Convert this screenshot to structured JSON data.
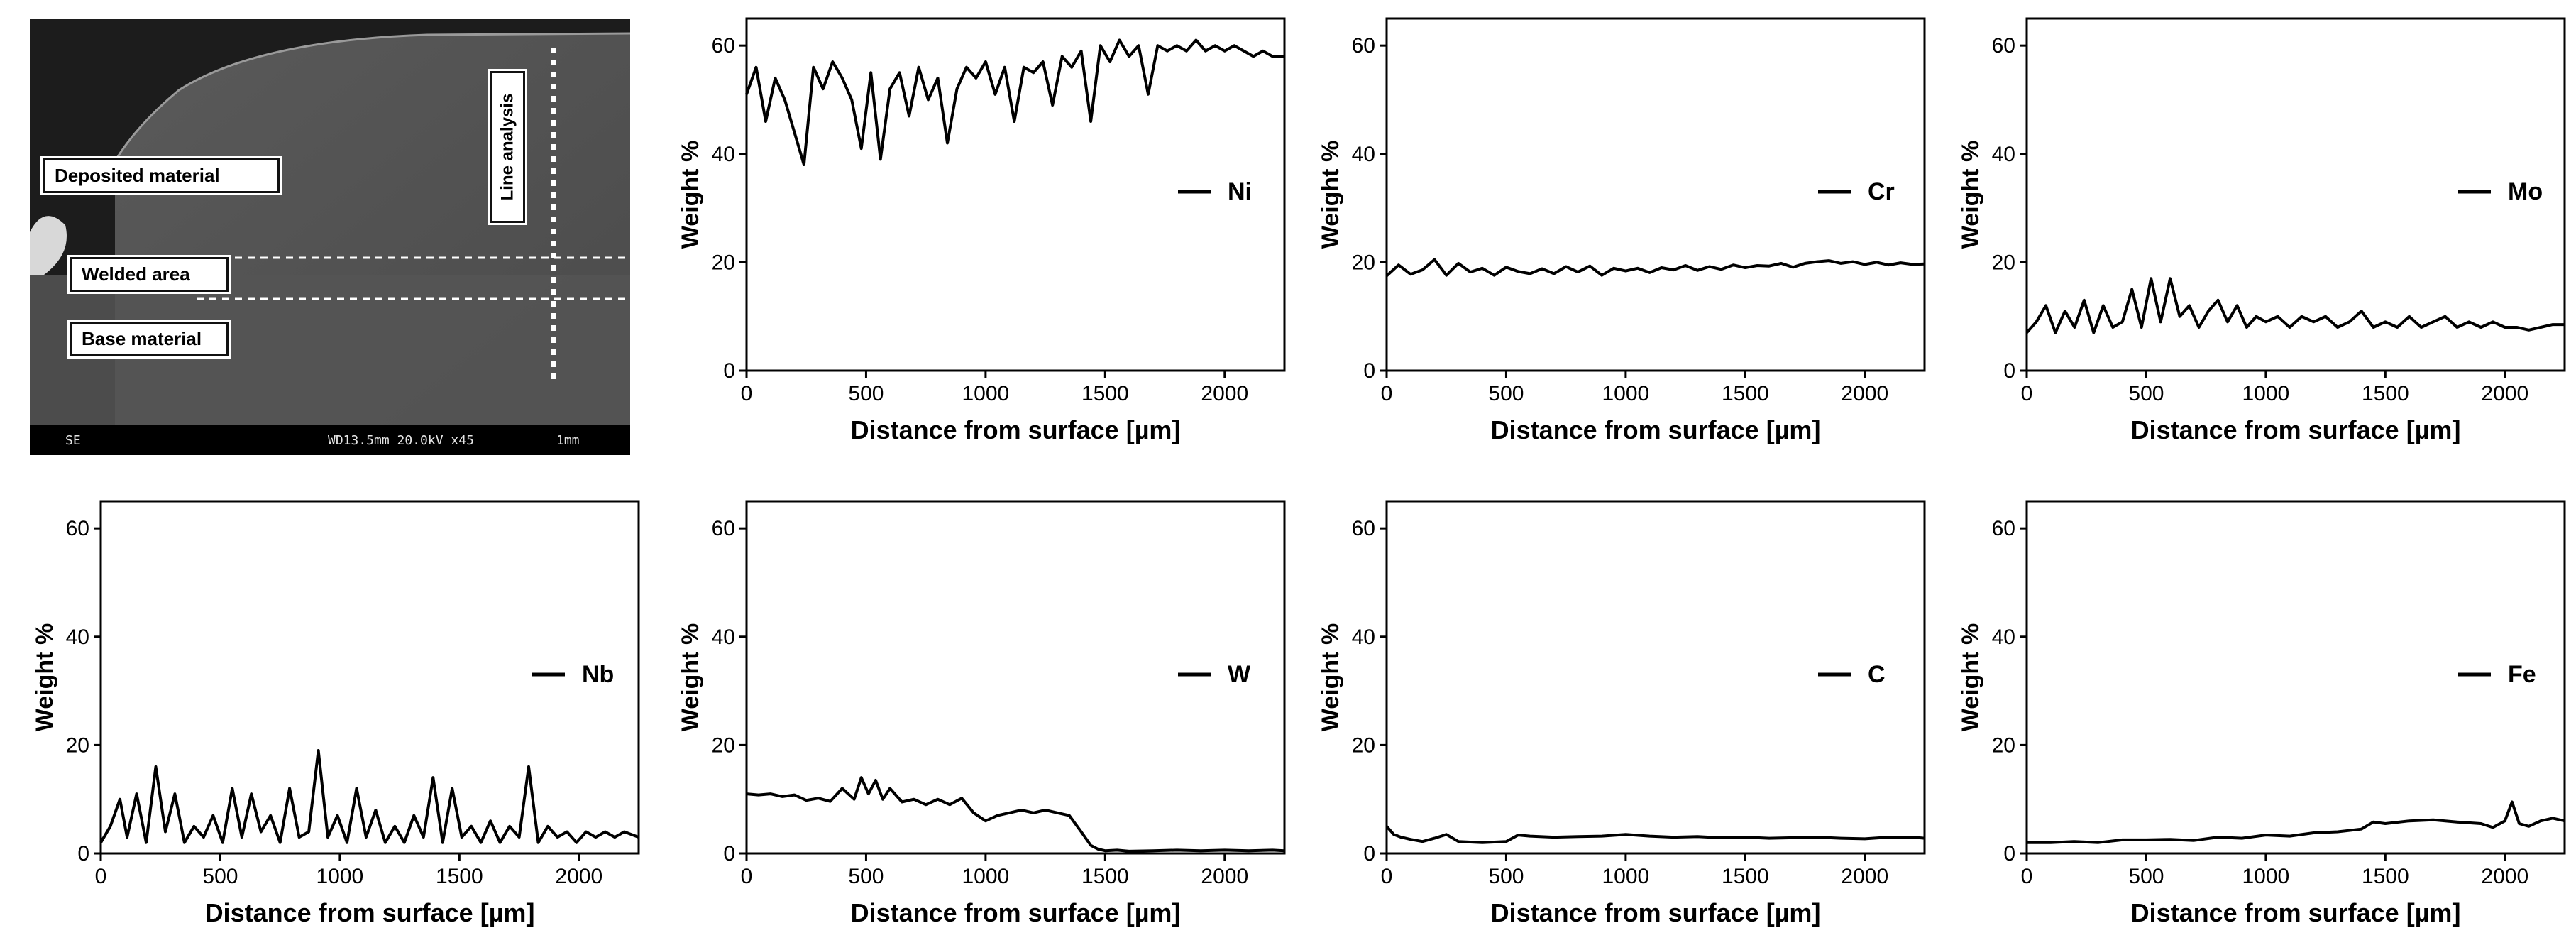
{
  "sem_image": {
    "labels": {
      "deposited": "Deposited material",
      "welded": "Welded area",
      "base": "Base material",
      "line": "Line analysis"
    },
    "footer": {
      "mode": "SE",
      "params": "WD13.5mm 20.0kV x45",
      "scale": "1mm"
    }
  },
  "chart_data": [
    {
      "type": "line",
      "xlabel": "Distance from surface [µm]",
      "ylabel": "Weight %",
      "xlim": [
        0,
        2250
      ],
      "ylim": [
        0,
        65
      ],
      "xticks": [
        0,
        500,
        1000,
        1500,
        2000
      ],
      "yticks": [
        0,
        20,
        40,
        60
      ],
      "series": [
        {
          "name": "Ni",
          "x": [
            0,
            40,
            80,
            120,
            160,
            200,
            240,
            280,
            320,
            360,
            400,
            440,
            480,
            520,
            560,
            600,
            640,
            680,
            720,
            760,
            800,
            840,
            880,
            920,
            960,
            1000,
            1040,
            1080,
            1120,
            1160,
            1200,
            1240,
            1280,
            1320,
            1360,
            1400,
            1440,
            1480,
            1520,
            1560,
            1600,
            1640,
            1680,
            1720,
            1760,
            1800,
            1840,
            1880,
            1920,
            1960,
            2000,
            2040,
            2080,
            2120,
            2160,
            2200,
            2250
          ],
          "y": [
            51,
            56,
            46,
            54,
            50,
            44,
            38,
            56,
            52,
            57,
            54,
            50,
            41,
            55,
            39,
            52,
            55,
            47,
            56,
            50,
            54,
            42,
            52,
            56,
            54,
            57,
            51,
            56,
            46,
            56,
            55,
            57,
            49,
            58,
            56,
            59,
            46,
            60,
            57,
            61,
            58,
            60,
            51,
            60,
            59,
            60,
            59,
            61,
            59,
            60,
            59,
            60,
            59,
            58,
            59,
            58,
            58
          ]
        }
      ]
    },
    {
      "type": "line",
      "xlabel": "Distance from surface [µm]",
      "ylabel": "Weight %",
      "xlim": [
        0,
        2250
      ],
      "ylim": [
        0,
        65
      ],
      "xticks": [
        0,
        500,
        1000,
        1500,
        2000
      ],
      "yticks": [
        0,
        20,
        40,
        60
      ],
      "series": [
        {
          "name": "Cr",
          "x": [
            0,
            50,
            100,
            150,
            200,
            250,
            300,
            350,
            400,
            450,
            500,
            550,
            600,
            650,
            700,
            750,
            800,
            850,
            900,
            950,
            1000,
            1050,
            1100,
            1150,
            1200,
            1250,
            1300,
            1350,
            1400,
            1450,
            1500,
            1550,
            1600,
            1650,
            1700,
            1750,
            1800,
            1850,
            1900,
            1950,
            2000,
            2050,
            2100,
            2150,
            2200,
            2250
          ],
          "y": [
            17.5,
            19.5,
            17.8,
            18.6,
            20.5,
            17.6,
            19.8,
            18.2,
            18.9,
            17.6,
            19.1,
            18.3,
            17.9,
            18.8,
            17.9,
            19.2,
            18.2,
            19.3,
            17.6,
            18.9,
            18.4,
            18.9,
            18.1,
            19.0,
            18.6,
            19.4,
            18.5,
            19.2,
            18.7,
            19.5,
            19.0,
            19.4,
            19.3,
            19.8,
            19.1,
            19.8,
            20.1,
            20.3,
            19.8,
            20.1,
            19.6,
            20.0,
            19.5,
            19.9,
            19.6,
            19.7
          ]
        }
      ]
    },
    {
      "type": "line",
      "xlabel": "Distance from surface [µm]",
      "ylabel": "Weight %",
      "xlim": [
        0,
        2250
      ],
      "ylim": [
        0,
        65
      ],
      "xticks": [
        0,
        500,
        1000,
        1500,
        2000
      ],
      "yticks": [
        0,
        20,
        40,
        60
      ],
      "series": [
        {
          "name": "Mo",
          "x": [
            0,
            40,
            80,
            120,
            160,
            200,
            240,
            280,
            320,
            360,
            400,
            440,
            480,
            520,
            560,
            600,
            640,
            680,
            720,
            760,
            800,
            840,
            880,
            920,
            960,
            1000,
            1050,
            1100,
            1150,
            1200,
            1250,
            1300,
            1350,
            1400,
            1450,
            1500,
            1550,
            1600,
            1650,
            1700,
            1750,
            1800,
            1850,
            1900,
            1950,
            2000,
            2050,
            2100,
            2150,
            2200,
            2250
          ],
          "y": [
            7,
            9,
            12,
            7,
            11,
            8,
            13,
            7,
            12,
            8,
            9,
            15,
            8,
            17,
            9,
            17,
            10,
            12,
            8,
            11,
            13,
            9,
            12,
            8,
            10,
            9,
            10,
            8,
            10,
            9,
            10,
            8,
            9,
            11,
            8,
            9,
            8,
            10,
            8,
            9,
            10,
            8,
            9,
            8,
            9,
            8,
            8,
            7.5,
            8,
            8.5,
            8.5
          ]
        }
      ]
    },
    {
      "type": "line",
      "xlabel": "Distance from surface [µm]",
      "ylabel": "Weight %",
      "xlim": [
        0,
        2250
      ],
      "ylim": [
        0,
        65
      ],
      "xticks": [
        0,
        500,
        1000,
        1500,
        2000
      ],
      "yticks": [
        0,
        20,
        40,
        60
      ],
      "series": [
        {
          "name": "Nb",
          "x": [
            0,
            40,
            80,
            110,
            150,
            190,
            230,
            270,
            310,
            350,
            390,
            430,
            470,
            510,
            550,
            590,
            630,
            670,
            710,
            750,
            790,
            830,
            870,
            910,
            950,
            990,
            1030,
            1070,
            1110,
            1150,
            1190,
            1230,
            1270,
            1310,
            1350,
            1390,
            1430,
            1470,
            1510,
            1550,
            1590,
            1630,
            1670,
            1710,
            1750,
            1790,
            1830,
            1870,
            1910,
            1950,
            1990,
            2030,
            2070,
            2110,
            2150,
            2190,
            2250
          ],
          "y": [
            2,
            5,
            10,
            3,
            11,
            2,
            16,
            4,
            11,
            2,
            5,
            3,
            7,
            2,
            12,
            3,
            11,
            4,
            7,
            2,
            12,
            3,
            4,
            19,
            3,
            7,
            2,
            12,
            3,
            8,
            2,
            5,
            2,
            7,
            3,
            14,
            2,
            12,
            3,
            5,
            2,
            6,
            2,
            5,
            3,
            16,
            2,
            5,
            3,
            4,
            2,
            4,
            3,
            4,
            3,
            4,
            3
          ]
        }
      ]
    },
    {
      "type": "line",
      "xlabel": "Distance from surface [µm]",
      "ylabel": "Weight %",
      "xlim": [
        0,
        2250
      ],
      "ylim": [
        0,
        65
      ],
      "xticks": [
        0,
        500,
        1000,
        1500,
        2000
      ],
      "yticks": [
        0,
        20,
        40,
        60
      ],
      "series": [
        {
          "name": "W",
          "x": [
            0,
            50,
            100,
            150,
            200,
            250,
            300,
            350,
            400,
            450,
            480,
            510,
            540,
            570,
            600,
            650,
            700,
            750,
            800,
            850,
            900,
            950,
            1000,
            1050,
            1100,
            1150,
            1200,
            1250,
            1300,
            1350,
            1400,
            1440,
            1470,
            1500,
            1550,
            1600,
            1700,
            1800,
            1900,
            2000,
            2100,
            2200,
            2250
          ],
          "y": [
            11,
            10.8,
            11,
            10.5,
            10.8,
            9.8,
            10.2,
            9.6,
            12,
            10,
            14,
            11,
            13.5,
            10,
            12,
            9.5,
            10,
            9,
            10,
            9,
            10.2,
            7.5,
            6,
            7,
            7.5,
            8,
            7.5,
            8,
            7.5,
            7,
            4,
            1.5,
            0.8,
            0.5,
            0.6,
            0.4,
            0.5,
            0.6,
            0.5,
            0.6,
            0.5,
            0.6,
            0.5
          ]
        }
      ]
    },
    {
      "type": "line",
      "xlabel": "Distance from surface [µm]",
      "ylabel": "Weight %",
      "xlim": [
        0,
        2250
      ],
      "ylim": [
        0,
        65
      ],
      "xticks": [
        0,
        500,
        1000,
        1500,
        2000
      ],
      "yticks": [
        0,
        20,
        40,
        60
      ],
      "series": [
        {
          "name": "C",
          "x": [
            0,
            30,
            60,
            100,
            150,
            200,
            250,
            300,
            400,
            500,
            550,
            600,
            700,
            800,
            900,
            1000,
            1100,
            1200,
            1300,
            1400,
            1500,
            1600,
            1700,
            1800,
            1900,
            2000,
            2100,
            2200,
            2250
          ],
          "y": [
            5,
            3.5,
            3,
            2.6,
            2.2,
            2.8,
            3.5,
            2.2,
            2,
            2.2,
            3.4,
            3.2,
            3,
            3.1,
            3.2,
            3.5,
            3.2,
            3,
            3.1,
            2.9,
            3,
            2.8,
            2.9,
            3,
            2.8,
            2.7,
            3,
            3,
            2.8
          ]
        }
      ]
    },
    {
      "type": "line",
      "xlabel": "Distance from surface [µm]",
      "ylabel": "Weight %",
      "xlim": [
        0,
        2250
      ],
      "ylim": [
        0,
        65
      ],
      "xticks": [
        0,
        500,
        1000,
        1500,
        2000
      ],
      "yticks": [
        0,
        20,
        40,
        60
      ],
      "series": [
        {
          "name": "Fe",
          "x": [
            0,
            100,
            200,
            300,
            400,
            500,
            600,
            700,
            800,
            900,
            1000,
            1100,
            1200,
            1300,
            1400,
            1450,
            1500,
            1600,
            1700,
            1800,
            1900,
            1950,
            2000,
            2030,
            2060,
            2100,
            2150,
            2200,
            2250
          ],
          "y": [
            2,
            2,
            2.2,
            2,
            2.5,
            2.5,
            2.6,
            2.4,
            3,
            2.8,
            3.4,
            3.2,
            3.8,
            4,
            4.5,
            5.8,
            5.5,
            6,
            6.2,
            5.8,
            5.5,
            4.8,
            6,
            9.5,
            5.5,
            5,
            6,
            6.5,
            6
          ]
        }
      ]
    }
  ]
}
